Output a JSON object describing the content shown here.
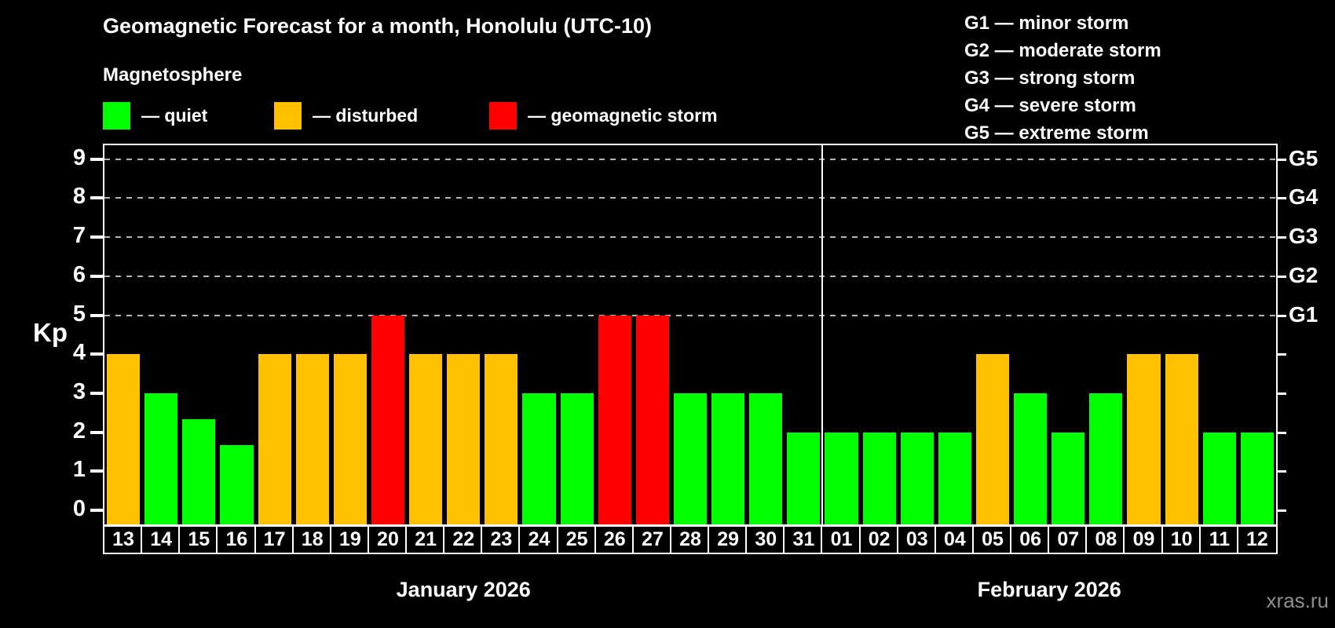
{
  "title": "Geomagnetic Forecast for a month, Honolulu (UTC-10)",
  "subtitle": "Magnetosphere",
  "legend": {
    "quiet_label": "— quiet",
    "disturbed_label": "— disturbed",
    "storm_label": "— geomagnetic storm"
  },
  "g_legend": {
    "lines": [
      "G1 — minor storm",
      "G2 — moderate storm",
      "G3 — strong storm",
      "G4 — severe storm",
      "G5 — extreme storm"
    ]
  },
  "kp_axis_label": "Kp",
  "watermark": "xras.ru",
  "colors": {
    "quiet": "#00ff00",
    "disturbed": "#ffc000",
    "storm": "#ff0000",
    "grid": "#b5b5b5",
    "axis": "#ffffff",
    "watermark": "#8f8f8f"
  },
  "chart_data": {
    "type": "bar",
    "title": "Geomagnetic Forecast for a month, Honolulu (UTC-10)",
    "ylabel": "Kp",
    "ylim": [
      0,
      9
    ],
    "y_ticks": [
      0,
      1,
      2,
      3,
      4,
      5,
      6,
      7,
      8,
      9
    ],
    "gridlines_at": [
      5,
      6,
      7,
      8,
      9
    ],
    "grid": "dashed-horizontal",
    "g_levels": [
      {
        "kp": 5,
        "label": "G1"
      },
      {
        "kp": 6,
        "label": "G2"
      },
      {
        "kp": 7,
        "label": "G3"
      },
      {
        "kp": 8,
        "label": "G4"
      },
      {
        "kp": 9,
        "label": "G5"
      }
    ],
    "legend_position": "top",
    "months": [
      {
        "label": "January 2026",
        "days": [
          {
            "day": "13",
            "kp": 4,
            "status": "disturbed"
          },
          {
            "day": "14",
            "kp": 3,
            "status": "quiet"
          },
          {
            "day": "15",
            "kp": 2.33,
            "status": "quiet"
          },
          {
            "day": "16",
            "kp": 1.67,
            "status": "quiet"
          },
          {
            "day": "17",
            "kp": 4,
            "status": "disturbed"
          },
          {
            "day": "18",
            "kp": 4,
            "status": "disturbed"
          },
          {
            "day": "19",
            "kp": 4,
            "status": "disturbed"
          },
          {
            "day": "20",
            "kp": 5,
            "status": "storm"
          },
          {
            "day": "21",
            "kp": 4,
            "status": "disturbed"
          },
          {
            "day": "22",
            "kp": 4,
            "status": "disturbed"
          },
          {
            "day": "23",
            "kp": 4,
            "status": "disturbed"
          },
          {
            "day": "24",
            "kp": 3,
            "status": "quiet"
          },
          {
            "day": "25",
            "kp": 3,
            "status": "quiet"
          },
          {
            "day": "26",
            "kp": 5,
            "status": "storm"
          },
          {
            "day": "27",
            "kp": 5,
            "status": "storm"
          },
          {
            "day": "28",
            "kp": 3,
            "status": "quiet"
          },
          {
            "day": "29",
            "kp": 3,
            "status": "quiet"
          },
          {
            "day": "30",
            "kp": 3,
            "status": "quiet"
          },
          {
            "day": "31",
            "kp": 2,
            "status": "quiet"
          }
        ]
      },
      {
        "label": "February 2026",
        "days": [
          {
            "day": "01",
            "kp": 2,
            "status": "quiet"
          },
          {
            "day": "02",
            "kp": 2,
            "status": "quiet"
          },
          {
            "day": "03",
            "kp": 2,
            "status": "quiet"
          },
          {
            "day": "04",
            "kp": 2,
            "status": "quiet"
          },
          {
            "day": "05",
            "kp": 4,
            "status": "disturbed"
          },
          {
            "day": "06",
            "kp": 3,
            "status": "quiet"
          },
          {
            "day": "07",
            "kp": 2,
            "status": "quiet"
          },
          {
            "day": "08",
            "kp": 3,
            "status": "quiet"
          },
          {
            "day": "09",
            "kp": 4,
            "status": "disturbed"
          },
          {
            "day": "10",
            "kp": 4,
            "status": "disturbed"
          },
          {
            "day": "11",
            "kp": 2,
            "status": "quiet"
          },
          {
            "day": "12",
            "kp": 2,
            "status": "quiet"
          }
        ]
      }
    ]
  }
}
